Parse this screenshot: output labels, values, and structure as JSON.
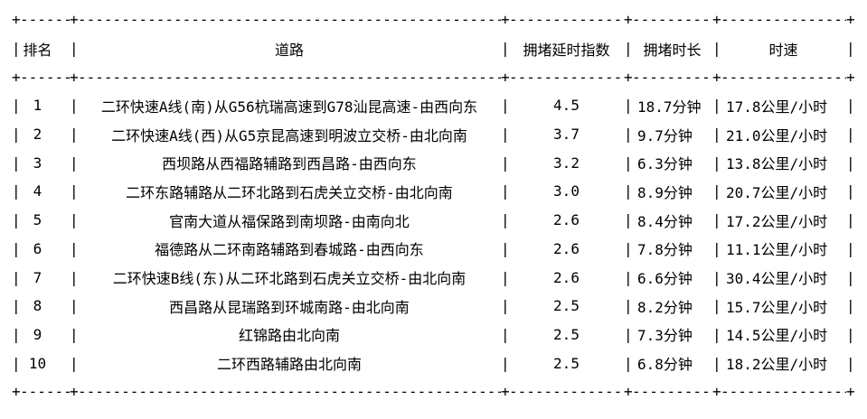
{
  "table": {
    "glyphs": {
      "corner": "+",
      "vertical": "|",
      "horizontal": "-"
    },
    "colors": {
      "text": "#000000",
      "background": "#ffffff"
    },
    "columns": [
      {
        "key": "rank",
        "label": "排名"
      },
      {
        "key": "road",
        "label": "道路"
      },
      {
        "key": "index",
        "label": "拥堵延时指数"
      },
      {
        "key": "duration",
        "label": "拥堵时长"
      },
      {
        "key": "speed",
        "label": "时速"
      }
    ],
    "rows": [
      {
        "rank": "1",
        "road": "二环快速A线(南)从G56杭瑞高速到G78汕昆高速-由西向东",
        "index": "4.5",
        "duration": "18.7分钟",
        "speed": "17.8公里/小时"
      },
      {
        "rank": "2",
        "road": "二环快速A线(西)从G5京昆高速到明波立交桥-由北向南",
        "index": "3.7",
        "duration": "9.7分钟",
        "speed": "21.0公里/小时"
      },
      {
        "rank": "3",
        "road": "西坝路从西福路辅路到西昌路-由西向东",
        "index": "3.2",
        "duration": "6.3分钟",
        "speed": "13.8公里/小时"
      },
      {
        "rank": "4",
        "road": "二环东路辅路从二环北路到石虎关立交桥-由北向南",
        "index": "3.0",
        "duration": "8.9分钟",
        "speed": "20.7公里/小时"
      },
      {
        "rank": "5",
        "road": "官南大道从福保路到南坝路-由南向北",
        "index": "2.6",
        "duration": "8.4分钟",
        "speed": "17.2公里/小时"
      },
      {
        "rank": "6",
        "road": "福德路从二环南路辅路到春城路-由西向东",
        "index": "2.6",
        "duration": "7.8分钟",
        "speed": "11.1公里/小时"
      },
      {
        "rank": "7",
        "road": "二环快速B线(东)从二环北路到石虎关立交桥-由北向南",
        "index": "2.6",
        "duration": "6.6分钟",
        "speed": "30.4公里/小时"
      },
      {
        "rank": "8",
        "road": "西昌路从昆瑞路到环城南路-由北向南",
        "index": "2.5",
        "duration": "8.2分钟",
        "speed": "15.7公里/小时"
      },
      {
        "rank": "9",
        "road": "红锦路由北向南",
        "index": "2.5",
        "duration": "7.3分钟",
        "speed": "14.5公里/小时"
      },
      {
        "rank": "10",
        "road": "二环西路辅路由北向南",
        "index": "2.5",
        "duration": "6.8分钟",
        "speed": "18.2公里/小时"
      }
    ]
  }
}
